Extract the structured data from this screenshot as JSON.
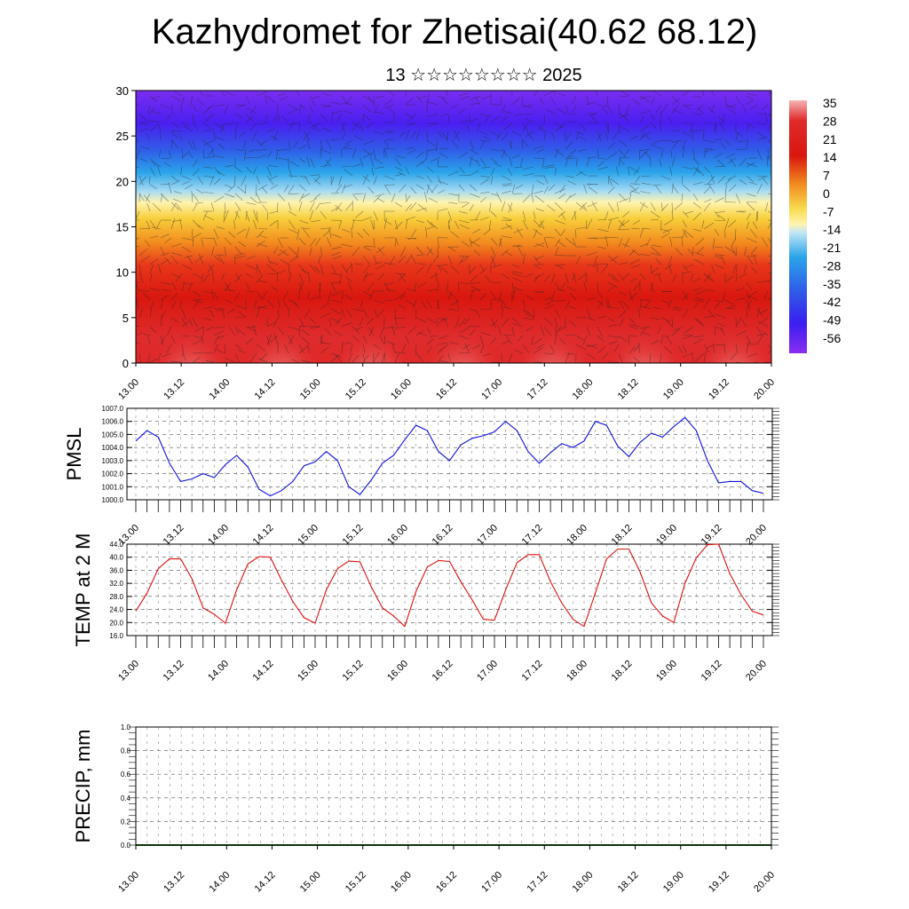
{
  "header": {
    "title": "Kazhydromet for Zhetisai(40.62 68.12)",
    "subtitle": "13 ☆☆☆☆☆☆☆☆ 2025"
  },
  "chart_data": [
    {
      "type": "heatmap",
      "name": "temperature-wind-cross-section",
      "ylim": [
        0,
        30
      ],
      "yticks": [
        "0",
        "5",
        "10",
        "15",
        "20",
        "25",
        "30"
      ],
      "xticks": [
        "13.00",
        "13.12",
        "14.00",
        "14.12",
        "15.00",
        "15.12",
        "16.00",
        "16.12",
        "17.00",
        "17.12",
        "18.00",
        "18.12",
        "19.00",
        "19.12",
        "20.00"
      ],
      "colorbar": {
        "labels": [
          "35",
          "28",
          "21",
          "14",
          "7",
          "0",
          "-7",
          "-14",
          "-21",
          "-28",
          "-35",
          "-42",
          "-49",
          "-56"
        ],
        "range": [
          -60,
          38
        ]
      }
    },
    {
      "type": "line",
      "ylabel": "PMSL",
      "ylim": [
        1000.0,
        1007.0
      ],
      "yticks": [
        "1000.0",
        "1001.0",
        "1002.0",
        "1003.0",
        "1004.0",
        "1005.0",
        "1006.0",
        "1007.0"
      ],
      "xticks": [
        "13.00",
        "13.12",
        "14.00",
        "14.12",
        "15.00",
        "15.12",
        "16.00",
        "16.12",
        "17.00",
        "17.12",
        "18.00",
        "18.12",
        "19.00",
        "19.12",
        "20.00"
      ],
      "color": "#1010e0",
      "x": [
        0,
        3,
        6,
        9,
        12,
        15,
        18,
        21,
        24,
        27,
        30,
        33,
        36,
        39,
        42,
        45,
        48,
        51,
        54,
        57,
        60,
        63,
        66,
        69,
        72,
        75,
        78,
        81,
        84,
        87,
        90,
        93,
        96,
        99,
        102,
        105,
        108,
        111,
        114,
        117,
        120,
        123,
        126,
        129,
        132,
        135,
        138,
        141,
        144,
        147,
        150,
        153,
        156,
        159,
        162,
        165,
        168
      ],
      "values": [
        1004.5,
        1005.3,
        1004.8,
        1002.8,
        1001.4,
        1001.6,
        1002.0,
        1001.7,
        1002.7,
        1003.4,
        1002.5,
        1000.8,
        1000.3,
        1000.7,
        1001.4,
        1002.6,
        1002.9,
        1003.7,
        1003.0,
        1001.0,
        1000.4,
        1001.5,
        1002.8,
        1003.4,
        1004.6,
        1005.7,
        1005.3,
        1003.7,
        1003.0,
        1004.2,
        1004.7,
        1004.9,
        1005.2,
        1006.0,
        1005.3,
        1003.7,
        1002.8,
        1003.6,
        1004.3,
        1004.0,
        1004.5,
        1006.0,
        1005.7,
        1004.1,
        1003.3,
        1004.4,
        1005.1,
        1004.8,
        1005.6,
        1006.3,
        1005.3,
        1003.0,
        1001.3,
        1001.4,
        1001.4,
        1000.7,
        1000.5
      ]
    },
    {
      "type": "line",
      "ylabel": "TEMP at 2 M",
      "ylim": [
        16.0,
        44.0
      ],
      "yticks": [
        "16.0",
        "20.0",
        "24.0",
        "28.0",
        "32.0",
        "36.0",
        "40.0",
        "44.0"
      ],
      "xticks": [
        "13.00",
        "13.12",
        "14.00",
        "14.12",
        "15.00",
        "15.12",
        "16.00",
        "16.12",
        "17.00",
        "17.12",
        "18.00",
        "18.12",
        "19.00",
        "19.12",
        "20.00"
      ],
      "color": "#e01010",
      "x": [
        0,
        3,
        6,
        9,
        12,
        15,
        18,
        21,
        24,
        27,
        30,
        33,
        36,
        39,
        42,
        45,
        48,
        51,
        54,
        57,
        60,
        63,
        66,
        69,
        72,
        75,
        78,
        81,
        84,
        87,
        90,
        93,
        96,
        99,
        102,
        105,
        108,
        111,
        114,
        117,
        120,
        123,
        126,
        129,
        132,
        135,
        138,
        141,
        144,
        147,
        150,
        153,
        156,
        159,
        162,
        165,
        168
      ],
      "values": [
        23.5,
        29.0,
        36.5,
        39.5,
        39.5,
        33.5,
        24.5,
        22.5,
        19.8,
        30.0,
        38.0,
        40.2,
        40.0,
        33.0,
        26.5,
        21.5,
        19.8,
        30.0,
        36.5,
        38.8,
        38.6,
        31.0,
        24.5,
        22.0,
        18.8,
        29.5,
        37.0,
        39.0,
        38.7,
        32.5,
        27.0,
        21.0,
        20.7,
        30.0,
        38.3,
        40.8,
        40.8,
        32.5,
        26.0,
        21.0,
        18.8,
        29.0,
        39.5,
        42.5,
        42.5,
        35.5,
        26.0,
        22.0,
        20.0,
        32.0,
        39.8,
        43.8,
        44.0,
        35.0,
        28.5,
        23.5,
        22.3
      ]
    },
    {
      "type": "bar",
      "ylabel": "PRECIP, mm",
      "ylim": [
        0.0,
        1.0
      ],
      "yticks": [
        "0.0",
        "0.2",
        "0.4",
        "0.6",
        "0.8",
        "1.0"
      ],
      "xticks": [
        "13.00",
        "13.12",
        "14.00",
        "14.12",
        "15.00",
        "15.12",
        "16.00",
        "16.12",
        "17.00",
        "17.12",
        "18.00",
        "18.12",
        "19.00",
        "19.12",
        "20.00"
      ],
      "values": [
        0,
        0,
        0,
        0,
        0,
        0,
        0,
        0,
        0,
        0,
        0,
        0,
        0,
        0,
        0,
        0,
        0,
        0,
        0,
        0,
        0,
        0,
        0,
        0,
        0,
        0,
        0,
        0,
        0,
        0,
        0,
        0,
        0,
        0,
        0,
        0,
        0,
        0,
        0,
        0,
        0,
        0,
        0,
        0,
        0,
        0,
        0,
        0,
        0,
        0,
        0,
        0,
        0,
        0,
        0,
        0
      ]
    }
  ]
}
